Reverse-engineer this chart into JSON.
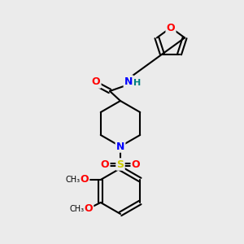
{
  "bg_color": "#ebebeb",
  "bond_color": "#000000",
  "atom_colors": {
    "O": "#ff0000",
    "N": "#0000ff",
    "S": "#cccc00",
    "H": "#008080",
    "C": "#000000"
  },
  "figsize": [
    3.0,
    3.0
  ],
  "dpi": 100
}
